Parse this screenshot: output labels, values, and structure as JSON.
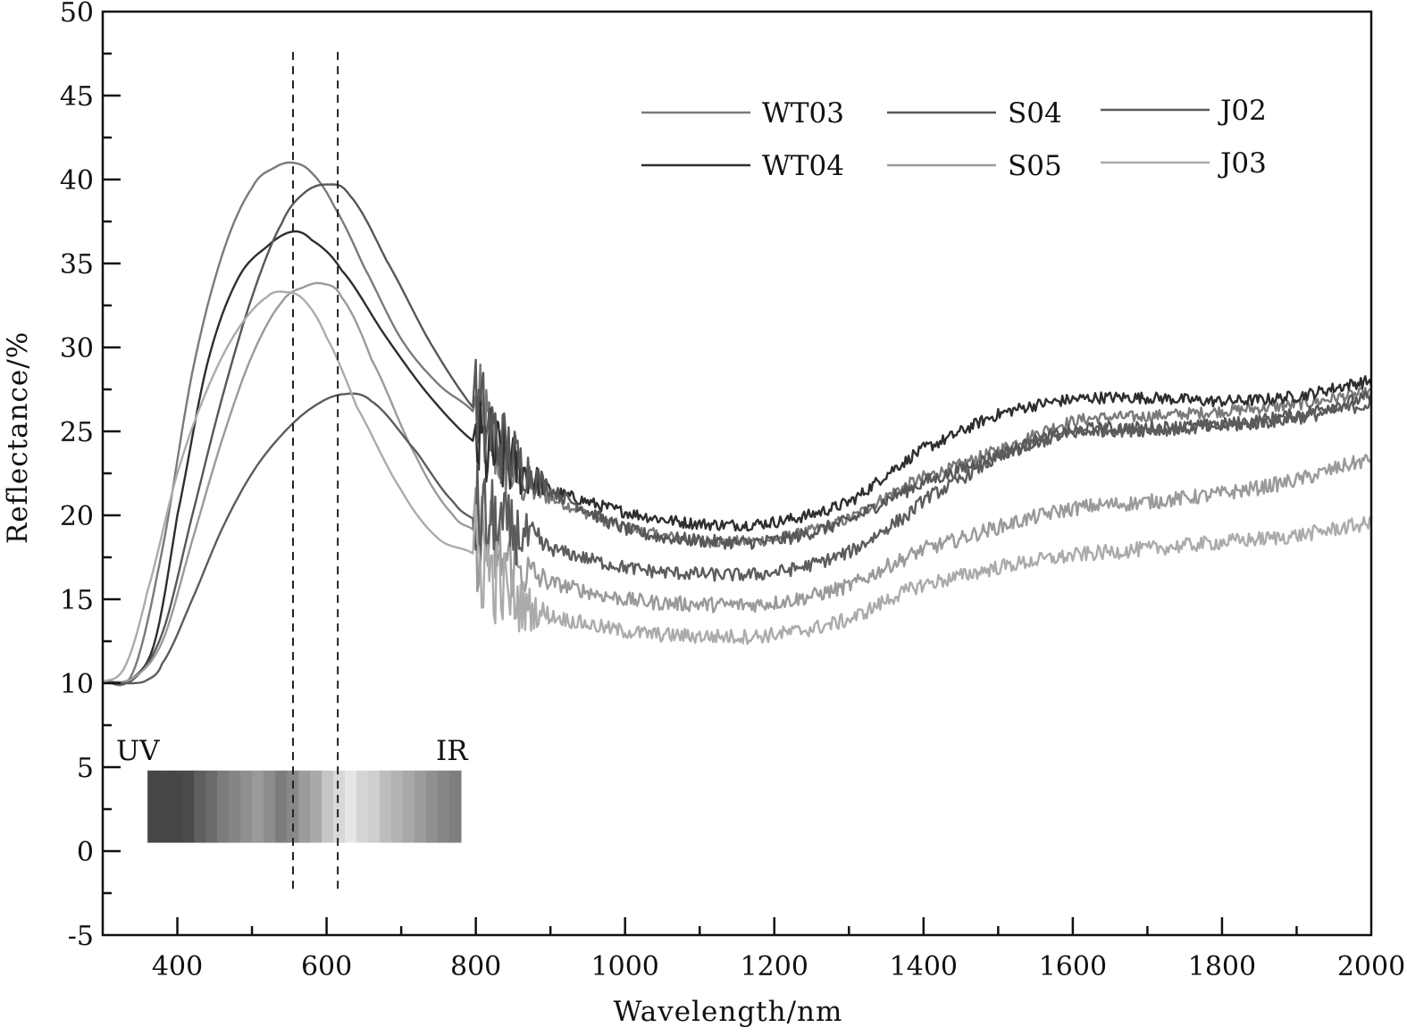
{
  "chart_data": {
    "type": "line",
    "title": "",
    "xlabel": "Wavelength/nm",
    "ylabel": "Reflectance/%",
    "xlim": [
      300,
      2000
    ],
    "ylim": [
      -5,
      50
    ],
    "x_ticks": [
      400,
      600,
      800,
      1000,
      1200,
      1400,
      1600,
      1800,
      2000
    ],
    "x_minor_step": 100,
    "y_ticks": [
      -5,
      0,
      5,
      10,
      15,
      20,
      25,
      30,
      35,
      40,
      45,
      50
    ],
    "y_minor_step": 2.5,
    "grid": false,
    "legend_position": "top-right",
    "reference_lines_x": [
      555,
      615
    ],
    "spectrum_band": {
      "labels": {
        "left": "UV",
        "right": "IR"
      },
      "x_start": 360,
      "x_end": 780,
      "y_range": [
        0.5,
        4.8
      ],
      "grey_levels": [
        "#474747",
        "#474747",
        "#474747",
        "#4a4a4a",
        "#5e5e5e",
        "#6a6a6a",
        "#7b7b7b",
        "#858585",
        "#8f8f8f",
        "#9a9a9a",
        "#8c8c8c",
        "#7d7d7d",
        "#888888",
        "#9b9b9b",
        "#a9a9a9",
        "#c5c5c5",
        "#d8d8d8",
        "#e6e6e6",
        "#d5d5d5",
        "#cfcfcf",
        "#bdbdbd",
        "#b3b3b3",
        "#a8a8a8",
        "#9c9c9c",
        "#909090",
        "#868686",
        "#7e7e7e"
      ]
    },
    "series": [
      {
        "name": "WT03",
        "color": "#7a7a7a",
        "x": [
          300,
          340,
          380,
          420,
          460,
          500,
          530,
          555,
          580,
          610,
          650,
          700,
          750,
          800,
          850,
          900,
          1000,
          1100,
          1200,
          1300,
          1380,
          1400,
          1500,
          1600,
          1700,
          1800,
          1900,
          2000
        ],
        "y": [
          10.1,
          10.6,
          18.0,
          28.5,
          35.5,
          39.5,
          40.7,
          41.0,
          40.4,
          38.4,
          34.8,
          30.5,
          27.8,
          26.0,
          22.5,
          21.0,
          19.3,
          18.5,
          18.6,
          19.8,
          21.8,
          22.3,
          23.9,
          25.6,
          25.9,
          26.2,
          26.6,
          27.3
        ],
        "noise": 0.35
      },
      {
        "name": "WT04",
        "color": "#2e2e2e",
        "x": [
          300,
          340,
          370,
          400,
          440,
          480,
          520,
          555,
          580,
          620,
          680,
          740,
          800,
          850,
          900,
          1000,
          1100,
          1200,
          1300,
          1380,
          1400,
          1500,
          1600,
          1700,
          1800,
          1900,
          2000
        ],
        "y": [
          10.1,
          10.3,
          12.5,
          20.0,
          29.0,
          34.0,
          36.0,
          36.9,
          36.4,
          34.6,
          30.6,
          27.0,
          24.3,
          23.0,
          21.5,
          20.2,
          19.5,
          19.6,
          20.8,
          23.3,
          24.0,
          26.0,
          26.9,
          27.0,
          26.8,
          27.1,
          28.0
        ],
        "noise": 0.35
      },
      {
        "name": "S04",
        "color": "#575757",
        "x": [
          300,
          340,
          380,
          420,
          460,
          500,
          540,
          570,
          600,
          630,
          680,
          740,
          800,
          850,
          900,
          1000,
          1100,
          1200,
          1300,
          1380,
          1400,
          1500,
          1600,
          1700,
          1800,
          1900,
          2000
        ],
        "y": [
          10.1,
          10.2,
          13.0,
          20.0,
          27.0,
          33.0,
          37.4,
          39.2,
          39.7,
          39.1,
          35.2,
          30.2,
          26.2,
          23.5,
          21.5,
          19.2,
          18.5,
          18.5,
          19.7,
          21.5,
          22.0,
          23.6,
          25.0,
          25.2,
          25.4,
          26.0,
          27.0
        ],
        "noise": 0.4
      },
      {
        "name": "S05",
        "color": "#9a9a9a",
        "x": [
          300,
          340,
          380,
          420,
          460,
          500,
          540,
          570,
          595,
          620,
          660,
          720,
          770,
          800,
          850,
          900,
          1000,
          1100,
          1200,
          1300,
          1380,
          1400,
          1500,
          1600,
          1700,
          1800,
          1900,
          2000
        ],
        "y": [
          10.1,
          10.3,
          12.5,
          18.5,
          24.5,
          29.5,
          32.7,
          33.6,
          33.8,
          33.0,
          29.3,
          23.5,
          20.0,
          19.0,
          17.0,
          16.0,
          15.0,
          14.7,
          14.8,
          15.8,
          17.5,
          18.0,
          19.3,
          20.4,
          20.8,
          21.3,
          22.1,
          23.3
        ],
        "noise": 0.45
      },
      {
        "name": "J02",
        "color": "#5c5c5c",
        "x": [
          300,
          340,
          360,
          380,
          420,
          460,
          500,
          540,
          580,
          620,
          660,
          720,
          770,
          800,
          850,
          900,
          1000,
          1100,
          1200,
          1300,
          1380,
          1400,
          1500,
          1600,
          1700,
          1800,
          1900,
          2000
        ],
        "y": [
          10.1,
          10.0,
          10.2,
          11.2,
          15.0,
          19.2,
          22.5,
          24.8,
          26.4,
          27.2,
          26.8,
          23.8,
          20.8,
          19.7,
          19.0,
          18.0,
          16.9,
          16.5,
          16.6,
          17.8,
          20.0,
          21.0,
          23.4,
          24.9,
          25.1,
          25.3,
          25.8,
          26.6
        ],
        "noise": 0.4
      },
      {
        "name": "J03",
        "color": "#ababab",
        "x": [
          300,
          330,
          360,
          400,
          440,
          480,
          520,
          545,
          570,
          600,
          640,
          700,
          750,
          800,
          850,
          900,
          1000,
          1100,
          1200,
          1300,
          1380,
          1400,
          1500,
          1600,
          1700,
          1800,
          1900,
          2000
        ],
        "y": [
          10.1,
          11.0,
          15.5,
          22.5,
          27.5,
          31.0,
          33.0,
          33.3,
          32.8,
          30.6,
          26.5,
          21.5,
          18.6,
          17.6,
          15.0,
          14.0,
          13.1,
          12.8,
          12.9,
          13.8,
          15.5,
          15.9,
          16.9,
          17.6,
          18.0,
          18.4,
          18.8,
          19.5
        ],
        "noise": 0.45
      }
    ]
  }
}
